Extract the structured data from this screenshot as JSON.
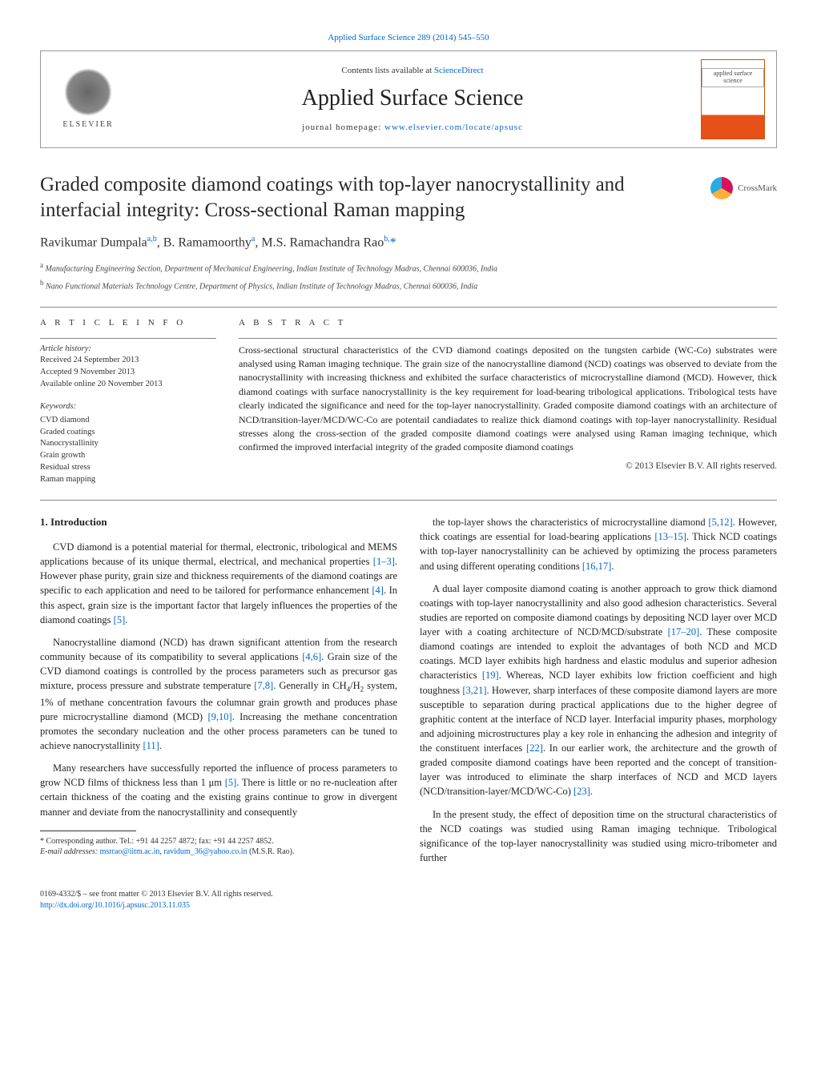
{
  "top_link": "Applied Surface Science 289 (2014) 545–550",
  "header": {
    "elsevier": "ELSEVIER",
    "contents_prefix": "Contents lists available at ",
    "contents_link": "ScienceDirect",
    "journal": "Applied Surface Science",
    "homepage_prefix": "journal homepage: ",
    "homepage_link": "www.elsevier.com/locate/apsusc",
    "cover_text": "applied surface science"
  },
  "title": "Graded composite diamond coatings with top-layer nanocrystallinity and interfacial integrity: Cross-sectional Raman mapping",
  "crossmark": "CrossMark",
  "authors_html": "Ravikumar Dumpala",
  "authors": [
    {
      "name": "Ravikumar Dumpala",
      "sup": "a,b"
    },
    {
      "name": "B. Ramamoorthy",
      "sup": "a"
    },
    {
      "name": "M.S. Ramachandra Rao",
      "sup": "b,",
      "corr": "*"
    }
  ],
  "affiliations": [
    {
      "sup": "a",
      "text": "Manufacturing Engineering Section, Department of Mechanical Engineering, Indian Institute of Technology Madras, Chennai 600036, India"
    },
    {
      "sup": "b",
      "text": "Nano Functional Materials Technology Centre, Department of Physics, Indian Institute of Technology Madras, Chennai 600036, India"
    }
  ],
  "info": {
    "label": "A R T I C L E   I N F O",
    "history_label": "Article history:",
    "received": "Received 24 September 2013",
    "accepted": "Accepted 9 November 2013",
    "online": "Available online 20 November 2013",
    "keywords_label": "Keywords:",
    "keywords": [
      "CVD diamond",
      "Graded coatings",
      "Nanocrystallinity",
      "Grain growth",
      "Residual stress",
      "Raman mapping"
    ]
  },
  "abstract": {
    "label": "A B S T R A C T",
    "text": "Cross-sectional structural characteristics of the CVD diamond coatings deposited on the tungsten carbide (WC-Co) substrates were analysed using Raman imaging technique. The grain size of the nanocrystalline diamond (NCD) coatings was observed to deviate from the nanocrystallinity with increasing thickness and exhibited the surface characteristics of microcrystalline diamond (MCD). However, thick diamond coatings with surface nanocrystallinity is the key requirement for load-bearing tribological applications. Tribological tests have clearly indicated the significance and need for the top-layer nanocrystallinity. Graded composite diamond coatings with an architecture of NCD/transition-layer/MCD/WC-Co are potentail candiadates to realize thick diamond coatings with top-layer nanocrystallinity. Residual stresses along the cross-section of the graded composite diamond coatings were analysed using Raman imaging technique, which confirmed the improved interfacial integrity of the graded composite diamond coatings",
    "copyright": "© 2013 Elsevier B.V. All rights reserved."
  },
  "intro_heading": "1.  Introduction",
  "left_paragraphs": [
    "CVD diamond is a potential material for thermal, electronic, tribological and MEMS applications because of its unique thermal, electrical, and mechanical properties [1–3]. However phase purity, grain size and thickness requirements of the diamond coatings are specific to each application and need to be tailored for performance enhancement [4]. In this aspect, grain size is the important factor that largely influences the properties of the diamond coatings [5].",
    "Nanocrystalline diamond (NCD) has drawn significant attention from the research community because of its compatibility to several applications [4,6]. Grain size of the CVD diamond coatings is controlled by the process parameters such as precursor gas mixture, process pressure and substrate temperature [7,8]. Generally in CH₄/H₂ system, 1% of methane concentration favours the columnar grain growth and produces phase pure microcrystalline diamond (MCD) [9,10]. Increasing the methane concentration promotes the secondary nucleation and the other process parameters can be tuned to achieve nanocrystallinity [11].",
    "Many researchers have successfully reported the influence of process parameters to grow NCD films of thickness less than 1 μm [5]. There is little or no re-nucleation after certain thickness of the coating and the existing grains continue to grow in divergent manner and deviate from the nanocrystallinity and consequently"
  ],
  "right_paragraphs": [
    "the top-layer shows the characteristics of microcrystalline diamond [5,12]. However, thick coatings are essential for load-bearing applications [13–15]. Thick NCD coatings with top-layer nanocrystallinity can be achieved by optimizing the process parameters and using different operating conditions [16,17].",
    "A dual layer composite diamond coating is another approach to grow thick diamond coatings with top-layer nanocrystallinity and also good adhesion characteristics. Several studies are reported on composite diamond coatings by depositing NCD layer over MCD layer with a coating architecture of NCD/MCD/substrate [17–20]. These composite diamond coatings are intended to exploit the advantages of both NCD and MCD coatings. MCD layer exhibits high hardness and elastic modulus and superior adhesion characteristics [19]. Whereas, NCD layer exhibits low friction coefficient and high toughness [3,21]. However, sharp interfaces of these composite diamond layers are more susceptible to separation during practical applications due to the higher degree of graphitic content at the interface of NCD layer. Interfacial impurity phases, morphology and adjoining microstructures play a key role in enhancing the adhesion and integrity of the constituent interfaces [22]. In our earlier work, the architecture and the growth of graded composite diamond coatings have been reported and the concept of transition-layer was introduced to eliminate the sharp interfaces of NCD and MCD layers (NCD/transition-layer/MCD/WC-Co) [23].",
    "In the present study, the effect of deposition time on the structural characteristics of the NCD coatings was studied using Raman imaging technique. Tribological significance of the top-layer nanocrystallinity was studied using micro-tribometer and further"
  ],
  "footnote": {
    "corr": "* Corresponding author. Tel.: +91 44 2257 4872; fax: +91 44 2257 4852.",
    "email_label": "E-mail addresses: ",
    "email1": "msrrao@iitm.ac.in",
    "email_sep": ", ",
    "email2": "ravidum_36@yahoo.co.in",
    "email_suffix": " (M.S.R. Rao)."
  },
  "bottom": {
    "line1": "0169-4332/$ – see front matter © 2013 Elsevier B.V. All rights reserved.",
    "doi": "http://dx.doi.org/10.1016/j.apsusc.2013.11.035"
  },
  "refs_highlight": [
    "[1–3]",
    "[4]",
    "[5]",
    "[4,6]",
    "[7,8]",
    "[9,10]",
    "[11]",
    "[5,12]",
    "[13–15]",
    "[16,17]",
    "[17–20]",
    "[19]",
    "[3,21]",
    "[22]",
    "[23]"
  ],
  "colors": {
    "link": "#0066cc",
    "text": "#222222",
    "border": "#999999"
  }
}
